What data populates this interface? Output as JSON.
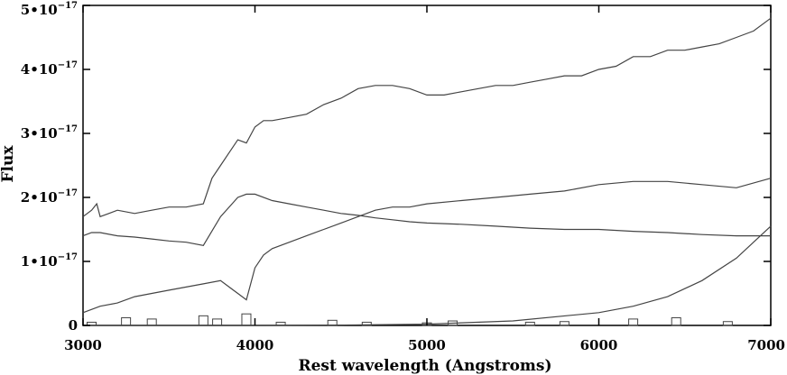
{
  "chart_data": {
    "type": "line",
    "title": "",
    "xlabel": "Rest wavelength (Angstroms)",
    "ylabel": "Flux",
    "xlim": [
      3000,
      7000
    ],
    "ylim": [
      0,
      5e-17
    ],
    "grid": false,
    "legend": "none",
    "x_ticks": [
      {
        "value": 3000,
        "label": "3000"
      },
      {
        "value": 4000,
        "label": "4000"
      },
      {
        "value": 5000,
        "label": "5000"
      },
      {
        "value": 6000,
        "label": "6000"
      },
      {
        "value": 7000,
        "label": "7000"
      }
    ],
    "y_ticks": [
      {
        "value": 0,
        "base": "0",
        "exp": ""
      },
      {
        "value": 1e-17,
        "base": "1•10",
        "exp": "−17"
      },
      {
        "value": 2e-17,
        "base": "2•10",
        "exp": "−17"
      },
      {
        "value": 3e-17,
        "base": "3•10",
        "exp": "−17"
      },
      {
        "value": 4e-17,
        "base": "4•10",
        "exp": "−17"
      },
      {
        "value": 5e-17,
        "base": "5•10",
        "exp": "−17"
      }
    ],
    "line_color": "#444444",
    "series": [
      {
        "key": "observed",
        "x": [
          3000,
          3050,
          3080,
          3100,
          3150,
          3200,
          3300,
          3400,
          3500,
          3600,
          3700,
          3750,
          3800,
          3850,
          3900,
          3950,
          4000,
          4050,
          4100,
          4200,
          4300,
          4400,
          4500,
          4600,
          4700,
          4800,
          4900,
          5000,
          5100,
          5200,
          5300,
          5400,
          5500,
          5600,
          5700,
          5800,
          5900,
          6000,
          6100,
          6200,
          6300,
          6400,
          6500,
          6600,
          6700,
          6800,
          6900,
          7000
        ],
        "y": [
          1.7e-17,
          1.8e-17,
          1.9e-17,
          1.7e-17,
          1.75e-17,
          1.8e-17,
          1.75e-17,
          1.8e-17,
          1.85e-17,
          1.85e-17,
          1.9e-17,
          2.3e-17,
          2.5e-17,
          2.7e-17,
          2.9e-17,
          2.85e-17,
          3.1e-17,
          3.2e-17,
          3.2e-17,
          3.25e-17,
          3.3e-17,
          3.45e-17,
          3.55e-17,
          3.7e-17,
          3.75e-17,
          3.75e-17,
          3.7e-17,
          3.6e-17,
          3.6e-17,
          3.65e-17,
          3.7e-17,
          3.75e-17,
          3.75e-17,
          3.8e-17,
          3.85e-17,
          3.9e-17,
          3.9e-17,
          4e-17,
          4.05e-17,
          4.2e-17,
          4.2e-17,
          4.3e-17,
          4.3e-17,
          4.35e-17,
          4.4e-17,
          4.5e-17,
          4.6e-17,
          4.8e-17
        ]
      },
      {
        "key": "component-upper",
        "x": [
          3000,
          3050,
          3100,
          3200,
          3300,
          3400,
          3500,
          3600,
          3700,
          3800,
          3900,
          3950,
          4000,
          4100,
          4200,
          4300,
          4400,
          4500,
          4600,
          4700,
          4800,
          4900,
          5000,
          5200,
          5400,
          5600,
          5800,
          6000,
          6200,
          6400,
          6600,
          6800,
          7000
        ],
        "y": [
          1.4e-17,
          1.45e-17,
          1.45e-17,
          1.4e-17,
          1.38e-17,
          1.35e-17,
          1.32e-17,
          1.3e-17,
          1.25e-17,
          1.7e-17,
          2e-17,
          2.05e-17,
          2.05e-17,
          1.95e-17,
          1.9e-17,
          1.85e-17,
          1.8e-17,
          1.75e-17,
          1.72e-17,
          1.68e-17,
          1.65e-17,
          1.62e-17,
          1.6e-17,
          1.58e-17,
          1.55e-17,
          1.52e-17,
          1.5e-17,
          1.5e-17,
          1.47e-17,
          1.45e-17,
          1.42e-17,
          1.4e-17,
          1.4e-17
        ]
      },
      {
        "key": "component-lower",
        "x": [
          3000,
          3100,
          3200,
          3300,
          3400,
          3500,
          3600,
          3700,
          3800,
          3850,
          3900,
          3950,
          4000,
          4050,
          4100,
          4200,
          4300,
          4400,
          4500,
          4600,
          4700,
          4800,
          4900,
          5000,
          5200,
          5400,
          5600,
          5800,
          6000,
          6200,
          6400,
          6600,
          6800,
          7000
        ],
        "y": [
          2e-18,
          3e-18,
          3.5e-18,
          4.5e-18,
          5e-18,
          5.5e-18,
          6e-18,
          6.5e-18,
          7e-18,
          6e-18,
          5e-18,
          4e-18,
          9e-18,
          1.1e-17,
          1.2e-17,
          1.3e-17,
          1.4e-17,
          1.5e-17,
          1.6e-17,
          1.7e-17,
          1.8e-17,
          1.85e-17,
          1.85e-17,
          1.9e-17,
          1.95e-17,
          2e-17,
          2.05e-17,
          2.1e-17,
          2.2e-17,
          2.25e-17,
          2.25e-17,
          2.2e-17,
          2.15e-17,
          2.3e-17
        ]
      },
      {
        "key": "power-law",
        "x": [
          3000,
          3500,
          4000,
          4500,
          5000,
          5500,
          6000,
          6200,
          6400,
          6600,
          6800,
          7000
        ],
        "y": [
          0,
          0,
          0,
          5e-20,
          2e-19,
          7e-19,
          2e-18,
          3e-18,
          4.5e-18,
          7e-18,
          1.05e-17,
          1.55e-17
        ]
      },
      {
        "key": "residual",
        "x": [
          3050,
          3250,
          3400,
          3700,
          3780,
          3950,
          4150,
          4450,
          4650,
          5000,
          5150,
          5600,
          5800,
          6200,
          6450,
          6750
        ],
        "y": [
          5e-19,
          1.2e-18,
          1e-18,
          1.5e-18,
          1e-18,
          1.8e-18,
          5e-19,
          8e-19,
          5e-19,
          4e-19,
          7e-19,
          5e-19,
          6e-19,
          1e-18,
          1.2e-18,
          6e-19
        ]
      }
    ]
  }
}
